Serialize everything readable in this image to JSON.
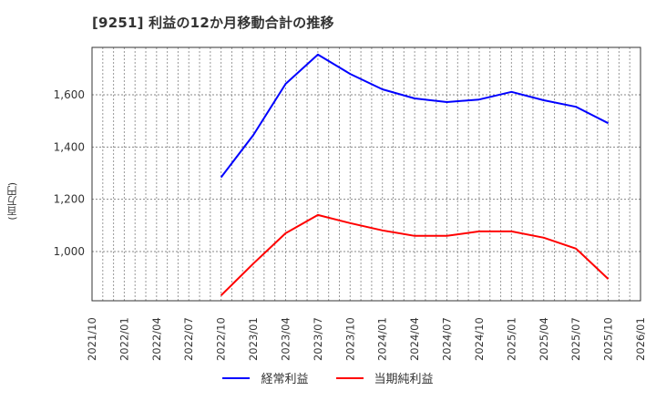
{
  "title": "[9251]  利益の12か月移動合計の推移",
  "y_axis_label": "(百万円)",
  "legend": [
    {
      "label": "経常利益",
      "color": "#0000ff"
    },
    {
      "label": "当期純利益",
      "color": "#ff0000"
    }
  ],
  "chart_data": {
    "type": "line",
    "title": "[9251]  利益の12か月移動合計の推移",
    "xlabel": "",
    "ylabel": "(百万円)",
    "x_ticks": [
      "2021/10",
      "2022/01",
      "2022/04",
      "2022/07",
      "2022/10",
      "2023/01",
      "2023/04",
      "2023/07",
      "2023/10",
      "2024/01",
      "2024/04",
      "2024/07",
      "2024/10",
      "2025/01",
      "2025/04",
      "2025/07",
      "2025/10",
      "2026/01"
    ],
    "y_ticks": [
      1000,
      1200,
      1400,
      1600
    ],
    "y_tick_labels": [
      "1,000",
      "1,200",
      "1,400",
      "1,600"
    ],
    "ylim": [
      820,
      1780
    ],
    "grid": true,
    "legend_position": "bottom",
    "x": [
      "2022/10",
      "2023/01",
      "2023/04",
      "2023/07",
      "2023/10",
      "2024/01",
      "2024/04",
      "2024/07",
      "2024/10",
      "2025/01",
      "2025/04",
      "2025/07",
      "2025/10"
    ],
    "series": [
      {
        "name": "経常利益",
        "color": "#0000ff",
        "values": [
          1284,
          1446,
          1642,
          1754,
          1680,
          1621,
          1586,
          1572,
          1582,
          1611,
          1579,
          1554,
          1491
        ]
      },
      {
        "name": "当期純利益",
        "color": "#ff0000",
        "values": [
          832,
          954,
          1070,
          1140,
          1109,
          1081,
          1060,
          1060,
          1077,
          1077,
          1053,
          1011,
          895
        ]
      }
    ]
  }
}
